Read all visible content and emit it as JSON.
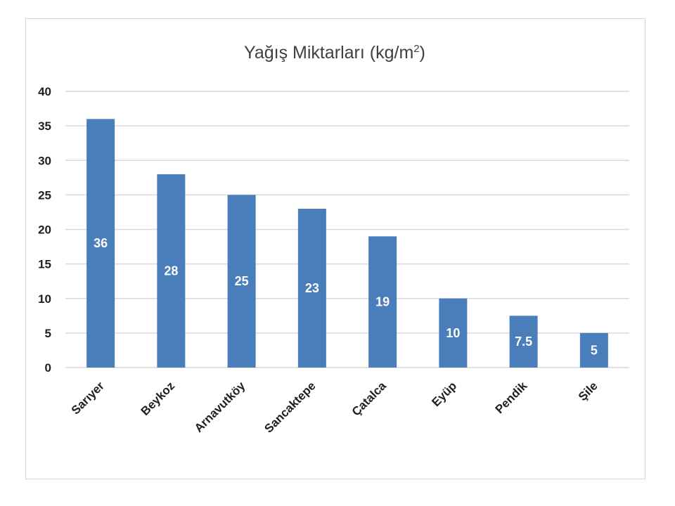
{
  "chart_data": {
    "type": "bar",
    "title": "Yağış Miktarları (kg/m",
    "title_sup": "2",
    "title_end": ")",
    "categories": [
      "Sarıyer",
      "Beykoz",
      "Arnavutköy",
      "Sancaktepe",
      "Çatalca",
      "Eyüp",
      "Pendik",
      "Şile"
    ],
    "values": [
      36,
      28,
      25,
      23,
      19,
      10,
      7.5,
      5
    ],
    "data_labels": [
      "36",
      "28",
      "25",
      "23",
      "19",
      "10",
      "7.5",
      "5"
    ],
    "ylim": [
      0,
      40
    ],
    "yticks": [
      0,
      5,
      10,
      15,
      20,
      25,
      30,
      35,
      40
    ],
    "ytick_labels": [
      "0",
      "5",
      "10",
      "15",
      "20",
      "25",
      "30",
      "35",
      "40"
    ],
    "xlabel": "",
    "ylabel": "",
    "grid": true,
    "bar_color": "#4a7ebb",
    "grid_color": "#d9d9d9"
  }
}
